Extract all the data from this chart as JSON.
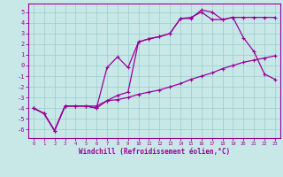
{
  "xlabel": "Windchill (Refroidissement éolien,°C)",
  "bg_color": "#c8e8e8",
  "line_color": "#990099",
  "grid_color": "#99cccc",
  "xlim": [
    -0.5,
    23.5
  ],
  "ylim": [
    -6.8,
    5.8
  ],
  "xticks": [
    0,
    1,
    2,
    3,
    4,
    5,
    6,
    7,
    8,
    9,
    10,
    11,
    12,
    13,
    14,
    15,
    16,
    17,
    18,
    19,
    20,
    21,
    22,
    23
  ],
  "yticks": [
    -6,
    -5,
    -4,
    -3,
    -2,
    -1,
    0,
    1,
    2,
    3,
    4,
    5
  ],
  "series": {
    "line1": {
      "x": [
        0,
        1,
        2,
        3,
        4,
        5,
        6,
        7,
        8,
        9,
        10,
        11,
        12,
        13,
        14,
        15,
        16,
        17,
        18,
        19,
        20,
        21,
        22,
        23
      ],
      "y": [
        -4.0,
        -4.5,
        -6.1,
        -3.8,
        -3.8,
        -3.8,
        -4.0,
        -3.3,
        -3.2,
        -3.0,
        -2.7,
        -2.5,
        -2.3,
        -2.0,
        -1.7,
        -1.3,
        -1.0,
        -0.7,
        -0.3,
        0.0,
        0.3,
        0.5,
        0.7,
        0.9
      ]
    },
    "line2": {
      "x": [
        0,
        1,
        2,
        3,
        4,
        5,
        6,
        7,
        8,
        9,
        10,
        11,
        12,
        13,
        14,
        15,
        16,
        17,
        18,
        19,
        20,
        21,
        22,
        23
      ],
      "y": [
        -4.0,
        -4.5,
        -6.1,
        -3.8,
        -3.8,
        -3.8,
        -4.0,
        -0.2,
        0.8,
        -0.2,
        2.2,
        2.5,
        2.7,
        3.0,
        4.4,
        4.4,
        5.2,
        5.0,
        4.3,
        4.5,
        2.6,
        1.3,
        -0.8,
        -1.3
      ]
    },
    "line3": {
      "x": [
        0,
        1,
        2,
        3,
        4,
        5,
        6,
        7,
        8,
        9,
        10,
        11,
        12,
        13,
        14,
        15,
        16,
        17,
        18,
        19,
        20,
        21,
        22,
        23
      ],
      "y": [
        -4.0,
        -4.5,
        -6.1,
        -3.8,
        -3.8,
        -3.8,
        -3.8,
        -3.3,
        -2.8,
        -2.5,
        2.2,
        2.5,
        2.7,
        3.0,
        4.4,
        4.5,
        5.0,
        4.3,
        4.3,
        4.5,
        4.5,
        4.5,
        4.5,
        4.5
      ]
    }
  }
}
